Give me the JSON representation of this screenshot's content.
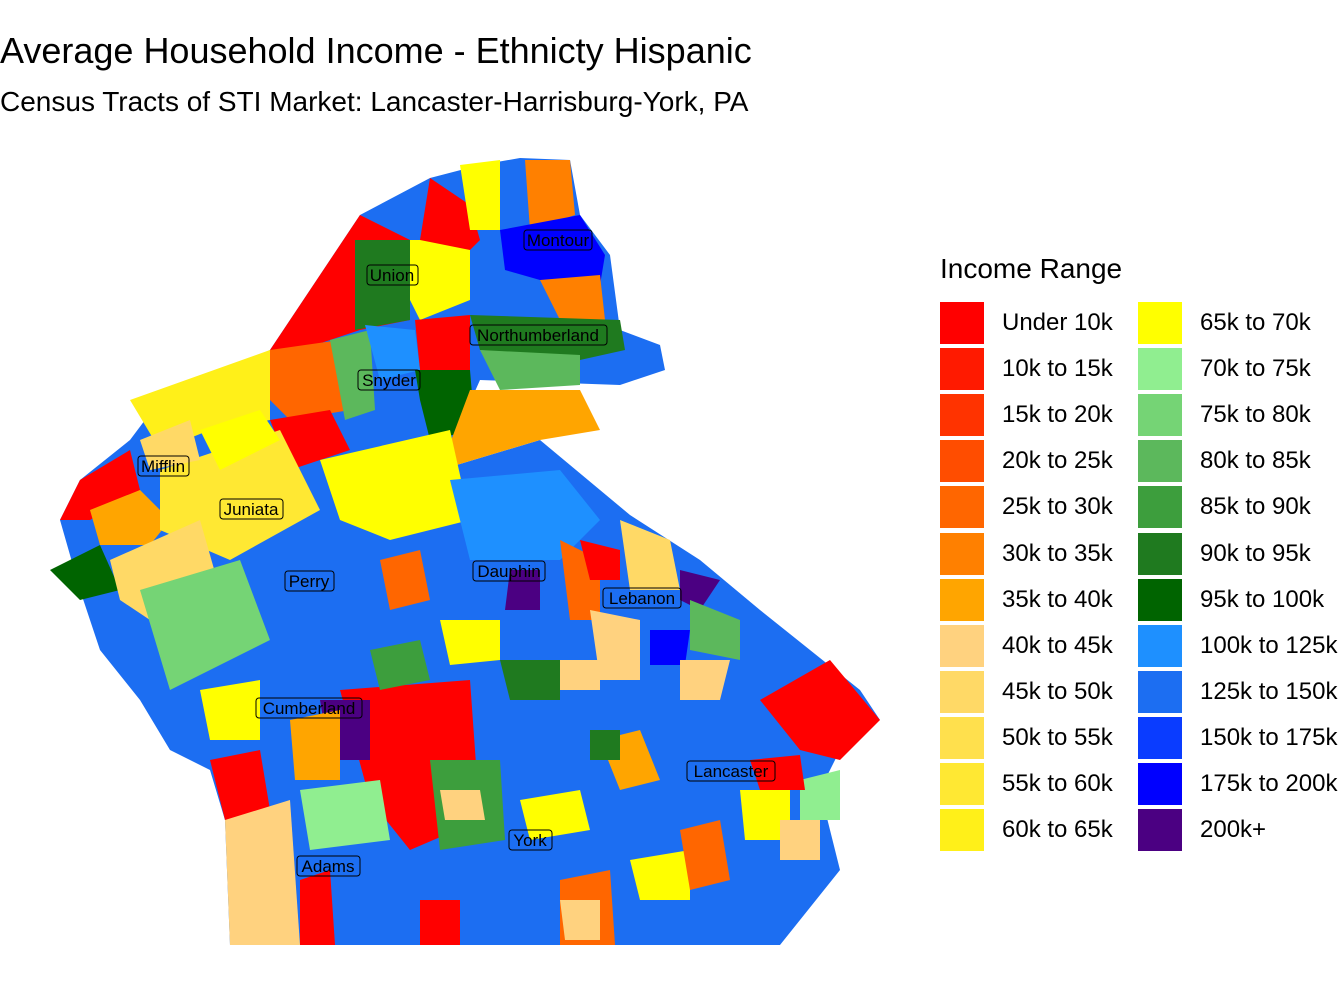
{
  "title": "Average Household Income - Ethnicty Hispanic",
  "subtitle": "Census Tracts of STI Market: Lancaster-Harrisburg-York, PA",
  "legend": {
    "title": "Income Range",
    "items": [
      {
        "label": "Under 10k",
        "color": "#FF0000"
      },
      {
        "label": "10k to 15k",
        "color": "#FF1A00"
      },
      {
        "label": "15k to 20k",
        "color": "#FF3300"
      },
      {
        "label": "20k to 25k",
        "color": "#FF4D00"
      },
      {
        "label": "25k to 30k",
        "color": "#FF6600"
      },
      {
        "label": "30k to 35k",
        "color": "#FF8000"
      },
      {
        "label": "35k to 40k",
        "color": "#FFA500"
      },
      {
        "label": "40k to 45k",
        "color": "#FFD27F"
      },
      {
        "label": "45k to 50k",
        "color": "#FFD966"
      },
      {
        "label": "50k to 55k",
        "color": "#FFE04D"
      },
      {
        "label": "55k to 60k",
        "color": "#FFE833"
      },
      {
        "label": "60k to 65k",
        "color": "#FFF019"
      },
      {
        "label": "65k to 70k",
        "color": "#FFFF00"
      },
      {
        "label": "70k to 75k",
        "color": "#90EE90"
      },
      {
        "label": "75k to 80k",
        "color": "#75D475"
      },
      {
        "label": "80k to 85k",
        "color": "#5CB85C"
      },
      {
        "label": "85k to 90k",
        "color": "#3D9E3D"
      },
      {
        "label": "90k to 95k",
        "color": "#1F7A1F"
      },
      {
        "label": "95k to 100k",
        "color": "#006400"
      },
      {
        "label": "100k to 125k",
        "color": "#1E90FF"
      },
      {
        "label": "125k to 150k",
        "color": "#1C6EF2"
      },
      {
        "label": "150k to 175k",
        "color": "#0A3CFF"
      },
      {
        "label": "175k to 200k",
        "color": "#0000FF"
      },
      {
        "label": "200k+",
        "color": "#4B0082"
      }
    ]
  },
  "counties": [
    "Union",
    "Montour",
    "Northumberland",
    "Snyder",
    "Mifflin",
    "Juniata",
    "Perry",
    "Dauphin",
    "Lebanon",
    "Cumberland",
    "Lancaster",
    "York",
    "Adams"
  ]
}
